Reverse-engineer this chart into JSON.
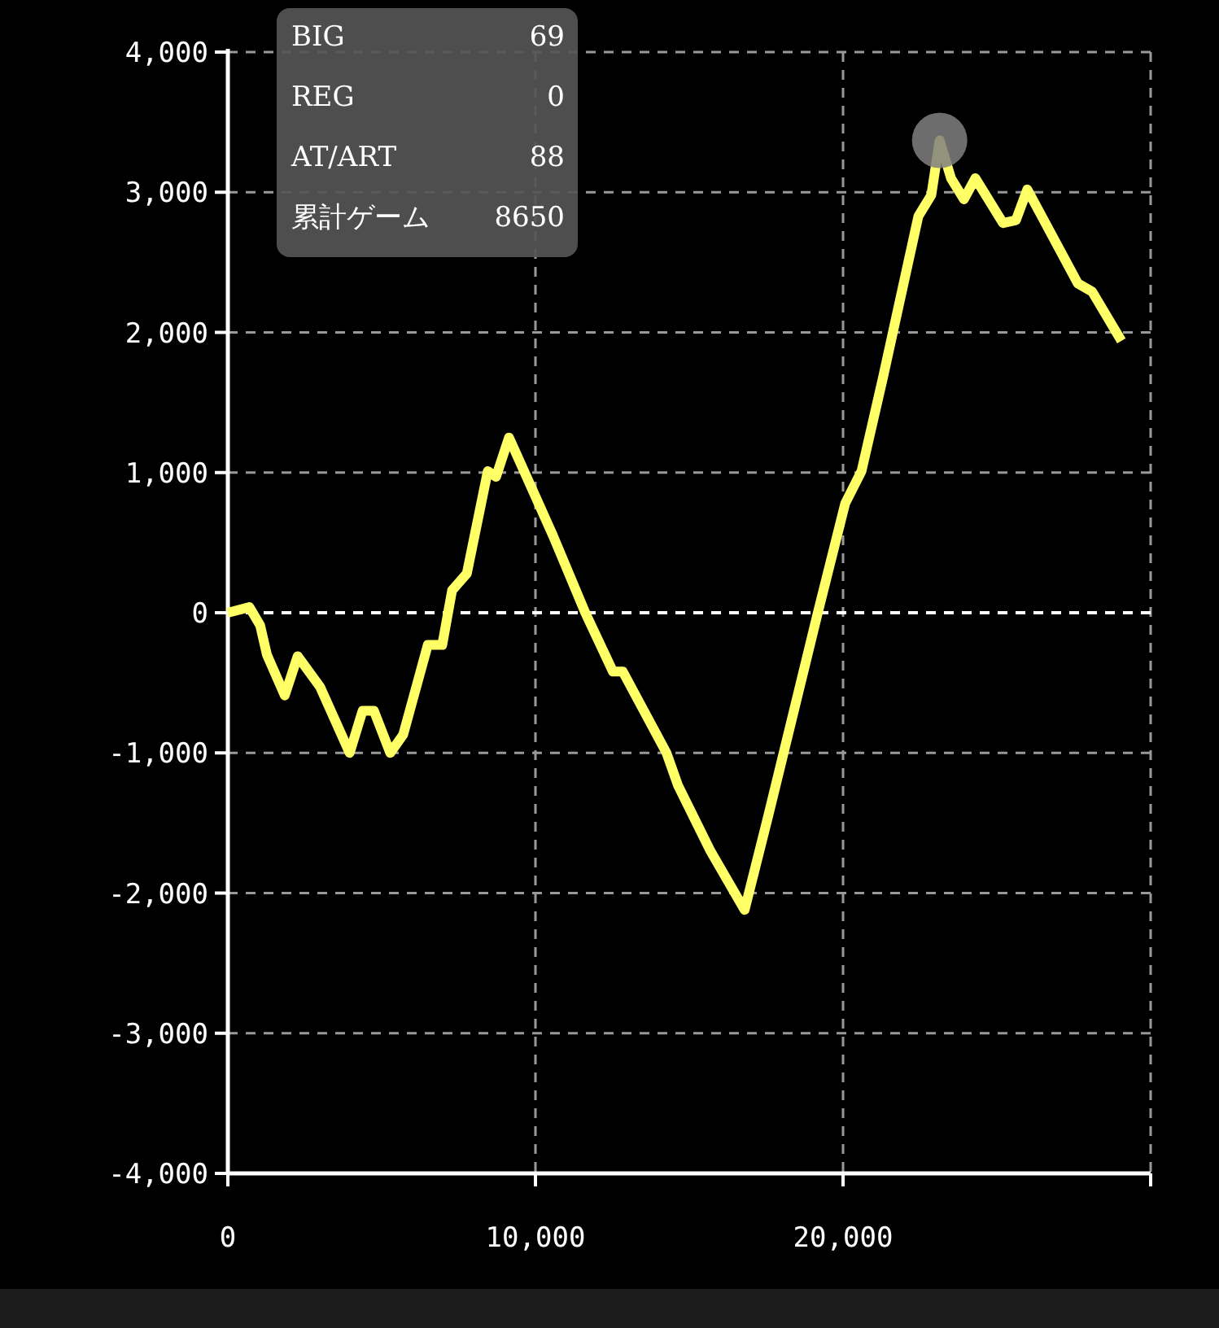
{
  "chart_data": {
    "type": "line",
    "xlim": [
      0,
      30000
    ],
    "ylim": [
      -4000,
      4000
    ],
    "xticks": [
      0,
      {
        "value": 10000,
        "label": "10,000"
      },
      {
        "value": 20000,
        "label": "20,000"
      },
      {
        "value": 30000,
        "label": null
      }
    ],
    "yticks": [
      {
        "value": -4000,
        "label": "-4,000"
      },
      {
        "value": -3000,
        "label": "-3,000"
      },
      {
        "value": -2000,
        "label": "-2,000"
      },
      {
        "value": -1000,
        "label": "-1,000"
      },
      0,
      {
        "value": 1000,
        "label": "1,000"
      },
      {
        "value": 2000,
        "label": "2,000"
      },
      {
        "value": 3000,
        "label": "3,000"
      },
      {
        "value": 4000,
        "label": "4,000"
      }
    ],
    "grid": true,
    "line_style": "solid",
    "ref_lines": [
      {
        "axis": "y",
        "value": 0,
        "color": "#ffffff",
        "line_style": "dashed"
      }
    ],
    "series": [
      {
        "color": "#ffff66",
        "x": [
          0,
          700,
          1050,
          1270,
          1850,
          2270,
          3000,
          3960,
          4380,
          4750,
          5280,
          5700,
          6500,
          6970,
          7290,
          7770,
          8450,
          8720,
          9140,
          10040,
          10570,
          11620,
          12520,
          12840,
          14260,
          14630,
          15690,
          16800,
          17590,
          19180,
          20070,
          20600,
          21290,
          22450,
          22870,
          23140,
          23510,
          23930,
          24300,
          25200,
          25620,
          25990,
          27630,
          28100,
          29050
        ],
        "values": [
          0,
          40,
          -90,
          -300,
          -590,
          -310,
          -530,
          -1000,
          -700,
          -700,
          -1000,
          -870,
          -230,
          -230,
          160,
          280,
          1010,
          970,
          1250,
          810,
          550,
          0,
          -420,
          -420,
          -1000,
          -1230,
          -1700,
          -2120,
          -1430,
          0,
          780,
          1010,
          1670,
          2830,
          2980,
          3370,
          3100,
          2950,
          3100,
          2780,
          2800,
          3020,
          2350,
          2290,
          1940
        ]
      },
      {
        "type": "scatter",
        "color": "#808080",
        "marker": "circle",
        "x": [
          23140
        ],
        "values": [
          3370
        ]
      }
    ],
    "annotations": [
      "BIG",
      "69",
      "REG",
      "0",
      "AT/ART",
      "88",
      "累計ゲーム",
      "8650"
    ]
  }
}
